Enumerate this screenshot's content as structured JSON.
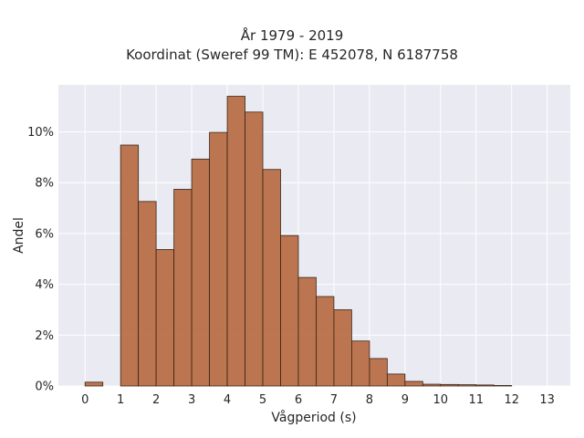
{
  "chart_data": {
    "type": "bar",
    "title": "År 1979 - 2019",
    "subtitle": "Koordinat (Sweref 99 TM): E 452078, N 6187758",
    "xlabel": "Vågperiod (s)",
    "ylabel": "Andel",
    "xlim": [
      -0.75,
      13.65
    ],
    "ylim": [
      0,
      0.1185
    ],
    "x_ticks": [
      "0",
      "1",
      "2",
      "3",
      "4",
      "5",
      "6",
      "7",
      "8",
      "9",
      "10",
      "11",
      "12",
      "13"
    ],
    "y_ticks": [
      {
        "value": 0.0,
        "label": "0%"
      },
      {
        "value": 0.02,
        "label": "2%"
      },
      {
        "value": 0.04,
        "label": "4%"
      },
      {
        "value": 0.06,
        "label": "6%"
      },
      {
        "value": 0.08,
        "label": "8%"
      },
      {
        "value": 0.1,
        "label": "10%"
      }
    ],
    "bin_width": 0.5,
    "bins": [
      {
        "x0": 0.0,
        "value": 0.0015
      },
      {
        "x0": 1.0,
        "value": 0.0948
      },
      {
        "x0": 1.5,
        "value": 0.0726
      },
      {
        "x0": 2.0,
        "value": 0.0537
      },
      {
        "x0": 2.5,
        "value": 0.0774
      },
      {
        "x0": 3.0,
        "value": 0.0893
      },
      {
        "x0": 3.5,
        "value": 0.0998
      },
      {
        "x0": 4.0,
        "value": 0.114
      },
      {
        "x0": 4.5,
        "value": 0.1078
      },
      {
        "x0": 5.0,
        "value": 0.0852
      },
      {
        "x0": 5.5,
        "value": 0.0592
      },
      {
        "x0": 6.0,
        "value": 0.0427
      },
      {
        "x0": 6.5,
        "value": 0.0352
      },
      {
        "x0": 7.0,
        "value": 0.03
      },
      {
        "x0": 7.5,
        "value": 0.0177
      },
      {
        "x0": 8.0,
        "value": 0.0108
      },
      {
        "x0": 8.5,
        "value": 0.0047
      },
      {
        "x0": 9.0,
        "value": 0.0018
      },
      {
        "x0": 9.5,
        "value": 0.0007
      },
      {
        "x0": 10.0,
        "value": 0.0006
      },
      {
        "x0": 10.5,
        "value": 0.0005
      },
      {
        "x0": 11.0,
        "value": 0.0004
      },
      {
        "x0": 11.5,
        "value": 0.0002
      }
    ],
    "grid": true,
    "colors": {
      "bar_fill": "#b66a42",
      "bar_edge": "#3a2418",
      "plot_background": "#eaeaf2",
      "grid": "#ffffff"
    }
  }
}
